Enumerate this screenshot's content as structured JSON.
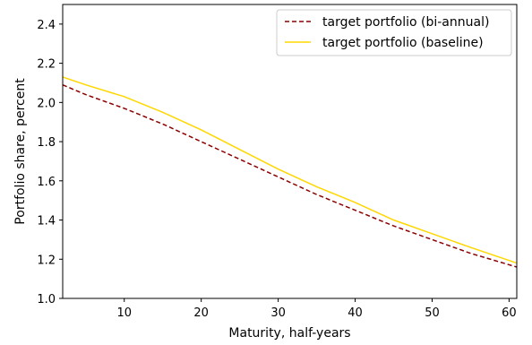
{
  "chart_data": {
    "type": "line",
    "title": "",
    "xlabel": "Maturity, half-years",
    "ylabel": "Portfolio share, percent",
    "xlim": [
      2,
      61
    ],
    "ylim": [
      1.0,
      2.5
    ],
    "xticks": [
      10,
      20,
      30,
      40,
      50,
      60
    ],
    "yticks": [
      1.0,
      1.2,
      1.4,
      1.6,
      1.8,
      2.0,
      2.2,
      2.4
    ],
    "grid": false,
    "legend_position": "top-right",
    "series": [
      {
        "name": "target portfolio (bi-annual)",
        "color": "#8b0000",
        "style": "dashed",
        "x": [
          2,
          5,
          10,
          15,
          20,
          25,
          30,
          35,
          40,
          45,
          50,
          55,
          61
        ],
        "y": [
          2.09,
          2.04,
          1.97,
          1.89,
          1.8,
          1.71,
          1.62,
          1.53,
          1.45,
          1.37,
          1.3,
          1.23,
          1.16
        ]
      },
      {
        "name": "target portfolio (baseline)",
        "color": "#ffd700",
        "style": "solid",
        "x": [
          2,
          5,
          10,
          15,
          20,
          25,
          30,
          35,
          40,
          45,
          50,
          55,
          61
        ],
        "y": [
          2.13,
          2.09,
          2.03,
          1.95,
          1.86,
          1.76,
          1.66,
          1.57,
          1.49,
          1.4,
          1.33,
          1.26,
          1.18
        ]
      }
    ]
  }
}
